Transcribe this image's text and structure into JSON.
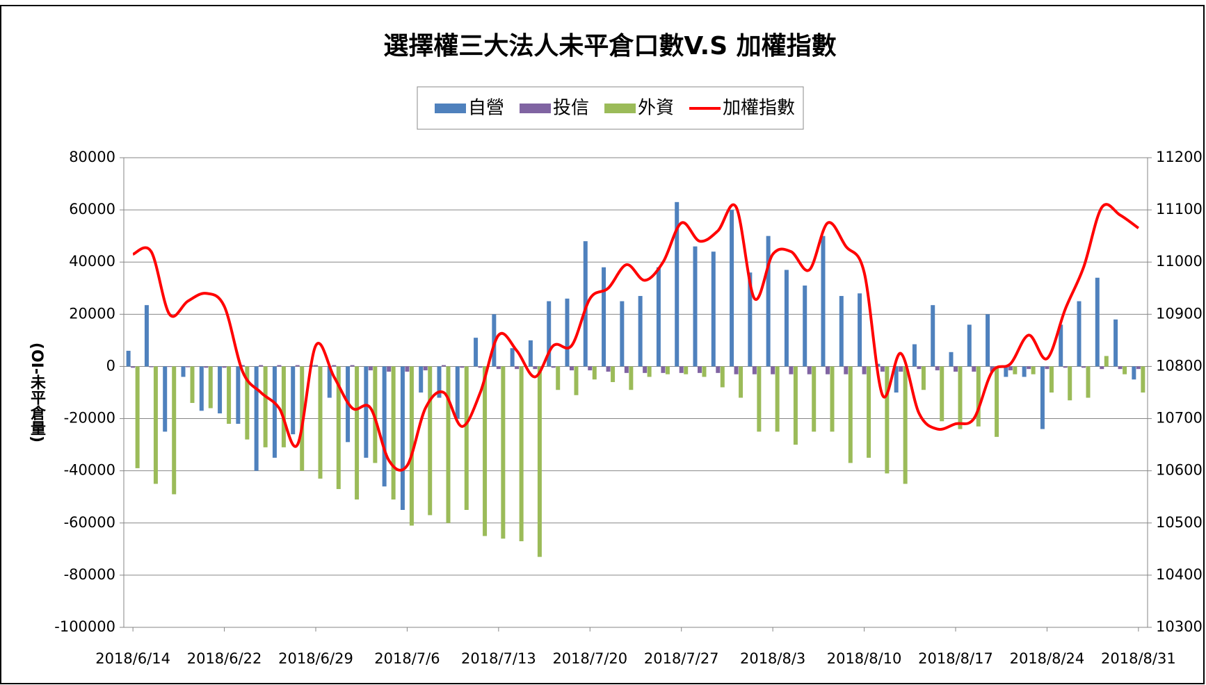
{
  "chart_data": {
    "type": "bar",
    "title": "選擇權三大法人未平倉口數V.S 加權指數",
    "y_label": "(OI-未平倉量)",
    "categories": [
      "2018/6/14",
      null,
      null,
      null,
      null,
      "2018/6/22",
      null,
      null,
      null,
      null,
      "2018/6/29",
      null,
      null,
      null,
      null,
      "2018/7/6",
      null,
      null,
      null,
      null,
      "2018/7/13",
      null,
      null,
      null,
      null,
      "2018/7/20",
      null,
      null,
      null,
      null,
      "2018/7/27",
      null,
      null,
      null,
      null,
      "2018/8/3",
      null,
      null,
      null,
      null,
      "2018/8/10",
      null,
      null,
      null,
      null,
      "2018/8/17",
      null,
      null,
      null,
      null,
      "2018/8/24",
      null,
      null,
      null,
      null,
      "2018/8/31"
    ],
    "series": [
      {
        "name": "自營",
        "type": "bar",
        "color": "#4f81bd",
        "values": [
          6000,
          23500,
          -25000,
          -4000,
          -17000,
          -18000,
          -22000,
          -40000,
          -35000,
          -26000,
          500,
          -12000,
          -29000,
          -35000,
          -46000,
          -55000,
          -10000,
          -12000,
          -20000,
          11000,
          20000,
          7000,
          10000,
          25000,
          26000,
          48000,
          38000,
          25000,
          27000,
          38000,
          63000,
          46000,
          44000,
          60000,
          36000,
          50000,
          37000,
          31000,
          50000,
          27000,
          28000,
          1000,
          -10000,
          8500,
          23500,
          5500,
          16000,
          20000,
          -4000,
          -4000,
          -24000,
          16000,
          25000,
          34000,
          18000,
          -5000
        ]
      },
      {
        "name": "投信",
        "type": "bar",
        "color": "#8064a2",
        "values": [
          -500,
          -300,
          -200,
          -300,
          -500,
          -500,
          500,
          500,
          500,
          500,
          500,
          500,
          500,
          -1500,
          -2000,
          -2000,
          -1500,
          500,
          -500,
          -500,
          -1000,
          -1000,
          -1000,
          -500,
          -1500,
          -1500,
          -2000,
          -2500,
          -2500,
          -2500,
          -2500,
          -2500,
          -2500,
          -3000,
          -3000,
          -3000,
          -3000,
          -3000,
          -3000,
          -3000,
          -3000,
          -2000,
          -2000,
          -1000,
          -1500,
          -2000,
          -2000,
          -2000,
          -1500,
          -1000,
          -1000,
          -500,
          -500,
          -1000,
          -1000,
          -1000
        ]
      },
      {
        "name": "外資",
        "type": "bar",
        "color": "#9bbb59",
        "values": [
          -39000,
          -45000,
          -49000,
          -14000,
          -16000,
          -22000,
          -28000,
          -31000,
          -31000,
          -40000,
          -43000,
          -47000,
          -51000,
          -37000,
          -51000,
          -61000,
          -57000,
          -60000,
          -55000,
          -65000,
          -66000,
          -67000,
          -73000,
          -9000,
          -11000,
          -5000,
          -6000,
          -9000,
          -4000,
          -3000,
          -3000,
          -4000,
          -8000,
          -12000,
          -25000,
          -25000,
          -30000,
          -25000,
          -25000,
          -37000,
          -35000,
          -41000,
          -45000,
          -9000,
          -21000,
          -24000,
          -23000,
          -27000,
          -3000,
          -3000,
          -10000,
          -13000,
          -12000,
          4000,
          -3000,
          -10000
        ]
      },
      {
        "name": "加權指數",
        "type": "line",
        "axis": "y2",
        "color": "#ff0000",
        "values": [
          11015,
          11020,
          10900,
          10925,
          10940,
          10915,
          10790,
          10750,
          10720,
          10650,
          10840,
          10780,
          10720,
          10720,
          10620,
          10610,
          10720,
          10750,
          10685,
          10750,
          10860,
          10830,
          10780,
          10840,
          10840,
          10930,
          10950,
          10995,
          10965,
          11000,
          11075,
          11040,
          11060,
          11105,
          10930,
          11015,
          11020,
          10985,
          11075,
          11030,
          10980,
          10745,
          10825,
          10710,
          10680,
          10690,
          10700,
          10790,
          10805,
          10860,
          10815,
          10910,
          10990,
          11105,
          11090,
          11065
        ]
      }
    ],
    "ylim": [
      -100000,
      80000
    ],
    "yticks": [
      -100000,
      -80000,
      -60000,
      -40000,
      -20000,
      0,
      20000,
      40000,
      60000,
      80000
    ],
    "y2lim": [
      10300,
      11200
    ],
    "y2ticks": [
      10300,
      10400,
      10500,
      10600,
      10700,
      10800,
      10900,
      11000,
      11100,
      11200
    ],
    "grid": true,
    "legend": "top"
  }
}
